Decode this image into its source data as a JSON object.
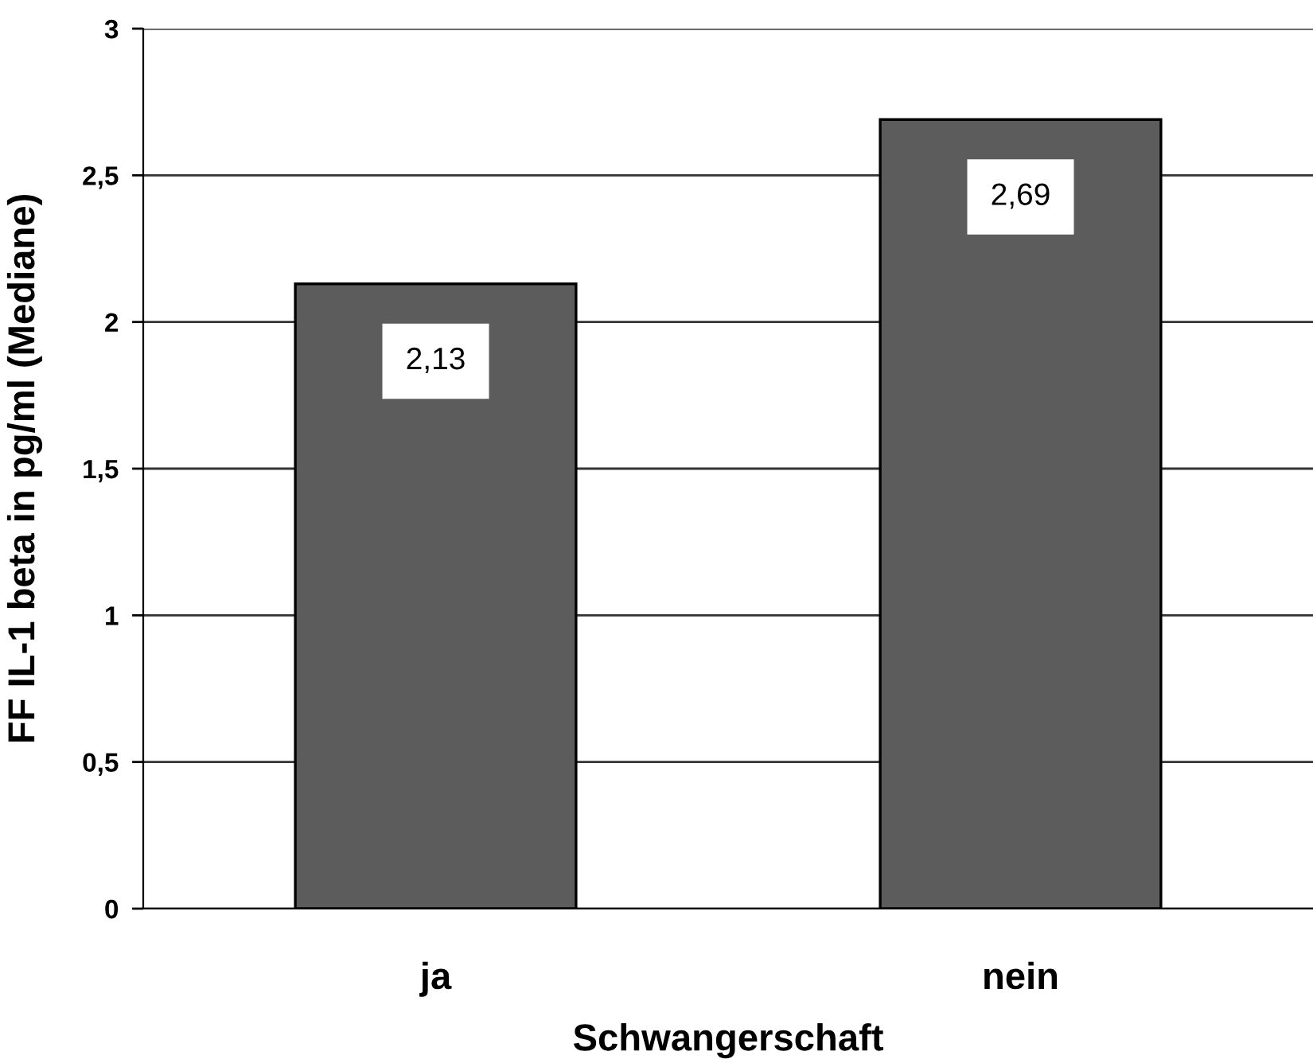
{
  "chart_data": {
    "type": "bar",
    "xlabel": "Schwangerschaft",
    "ylabel": "FF IL-1 beta in pg/ml (Mediane)",
    "categories": [
      "ja",
      "nein"
    ],
    "values": [
      2.13,
      2.69
    ],
    "color": "#5c5c5c",
    "value_labels": [
      "2,13",
      "2,69"
    ],
    "ylim": [
      0,
      3
    ],
    "yticks": [
      0,
      {
        "value": 0.5,
        "label": "0,5"
      },
      1,
      {
        "value": 1.5,
        "label": "1,5"
      },
      2,
      {
        "value": 2.5,
        "label": "2,5"
      },
      3
    ],
    "grid": "y"
  }
}
